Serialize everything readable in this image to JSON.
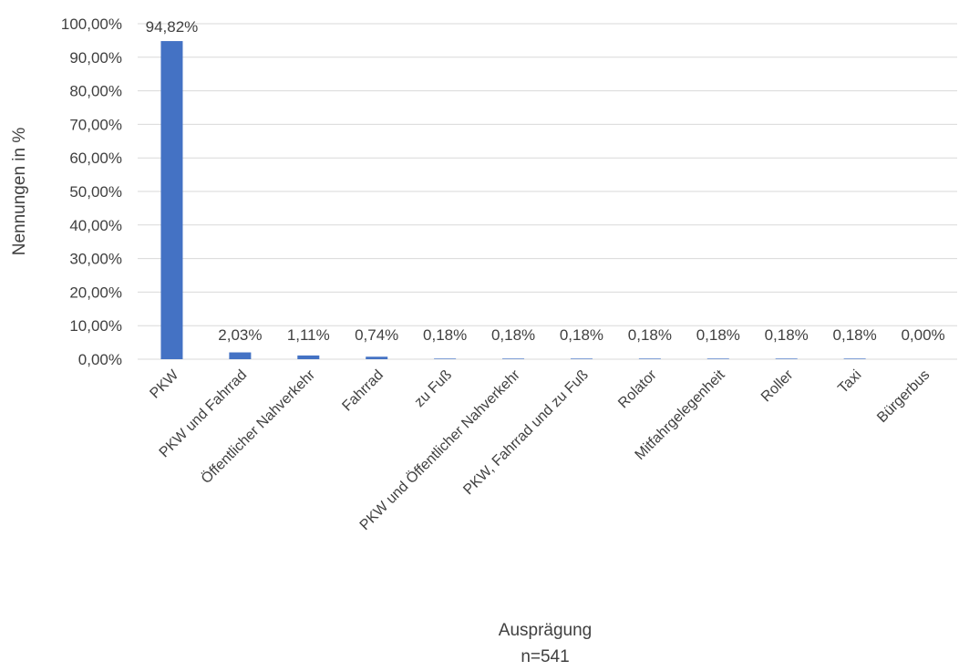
{
  "chart_data": {
    "type": "bar",
    "categories": [
      "PKW",
      "PKW und Fahrrad",
      "Öffentlicher Nahverkehr",
      "Fahrrad",
      "zu Fuß",
      "PKW und Öffentlicher Nahverkehr",
      "PKW, Fahrrad und zu Fuß",
      "Rolator",
      "Mitfahrgelegenheit",
      "Roller",
      "Taxi",
      "Bürgerbus"
    ],
    "values": [
      94.82,
      2.03,
      1.11,
      0.74,
      0.18,
      0.18,
      0.18,
      0.18,
      0.18,
      0.18,
      0.18,
      0.0
    ],
    "value_labels": [
      "94,82%",
      "2,03%",
      "1,11%",
      "0,74%",
      "0,18%",
      "0,18%",
      "0,18%",
      "0,18%",
      "0,18%",
      "0,18%",
      "0,18%",
      "0,00%"
    ],
    "title": "",
    "xlabel": "Ausprägung",
    "xlabel_note": "n=541",
    "ylabel": "Nennungen in %",
    "ylim": [
      0,
      100
    ],
    "yticks": [
      0,
      10,
      20,
      30,
      40,
      50,
      60,
      70,
      80,
      90,
      100
    ],
    "ytick_labels": [
      "0,00%",
      "10,00%",
      "20,00%",
      "30,00%",
      "40,00%",
      "50,00%",
      "60,00%",
      "70,00%",
      "80,00%",
      "90,00%",
      "100,00%"
    ],
    "grid": true,
    "legend": "none",
    "bar_color": "#4472c4"
  }
}
